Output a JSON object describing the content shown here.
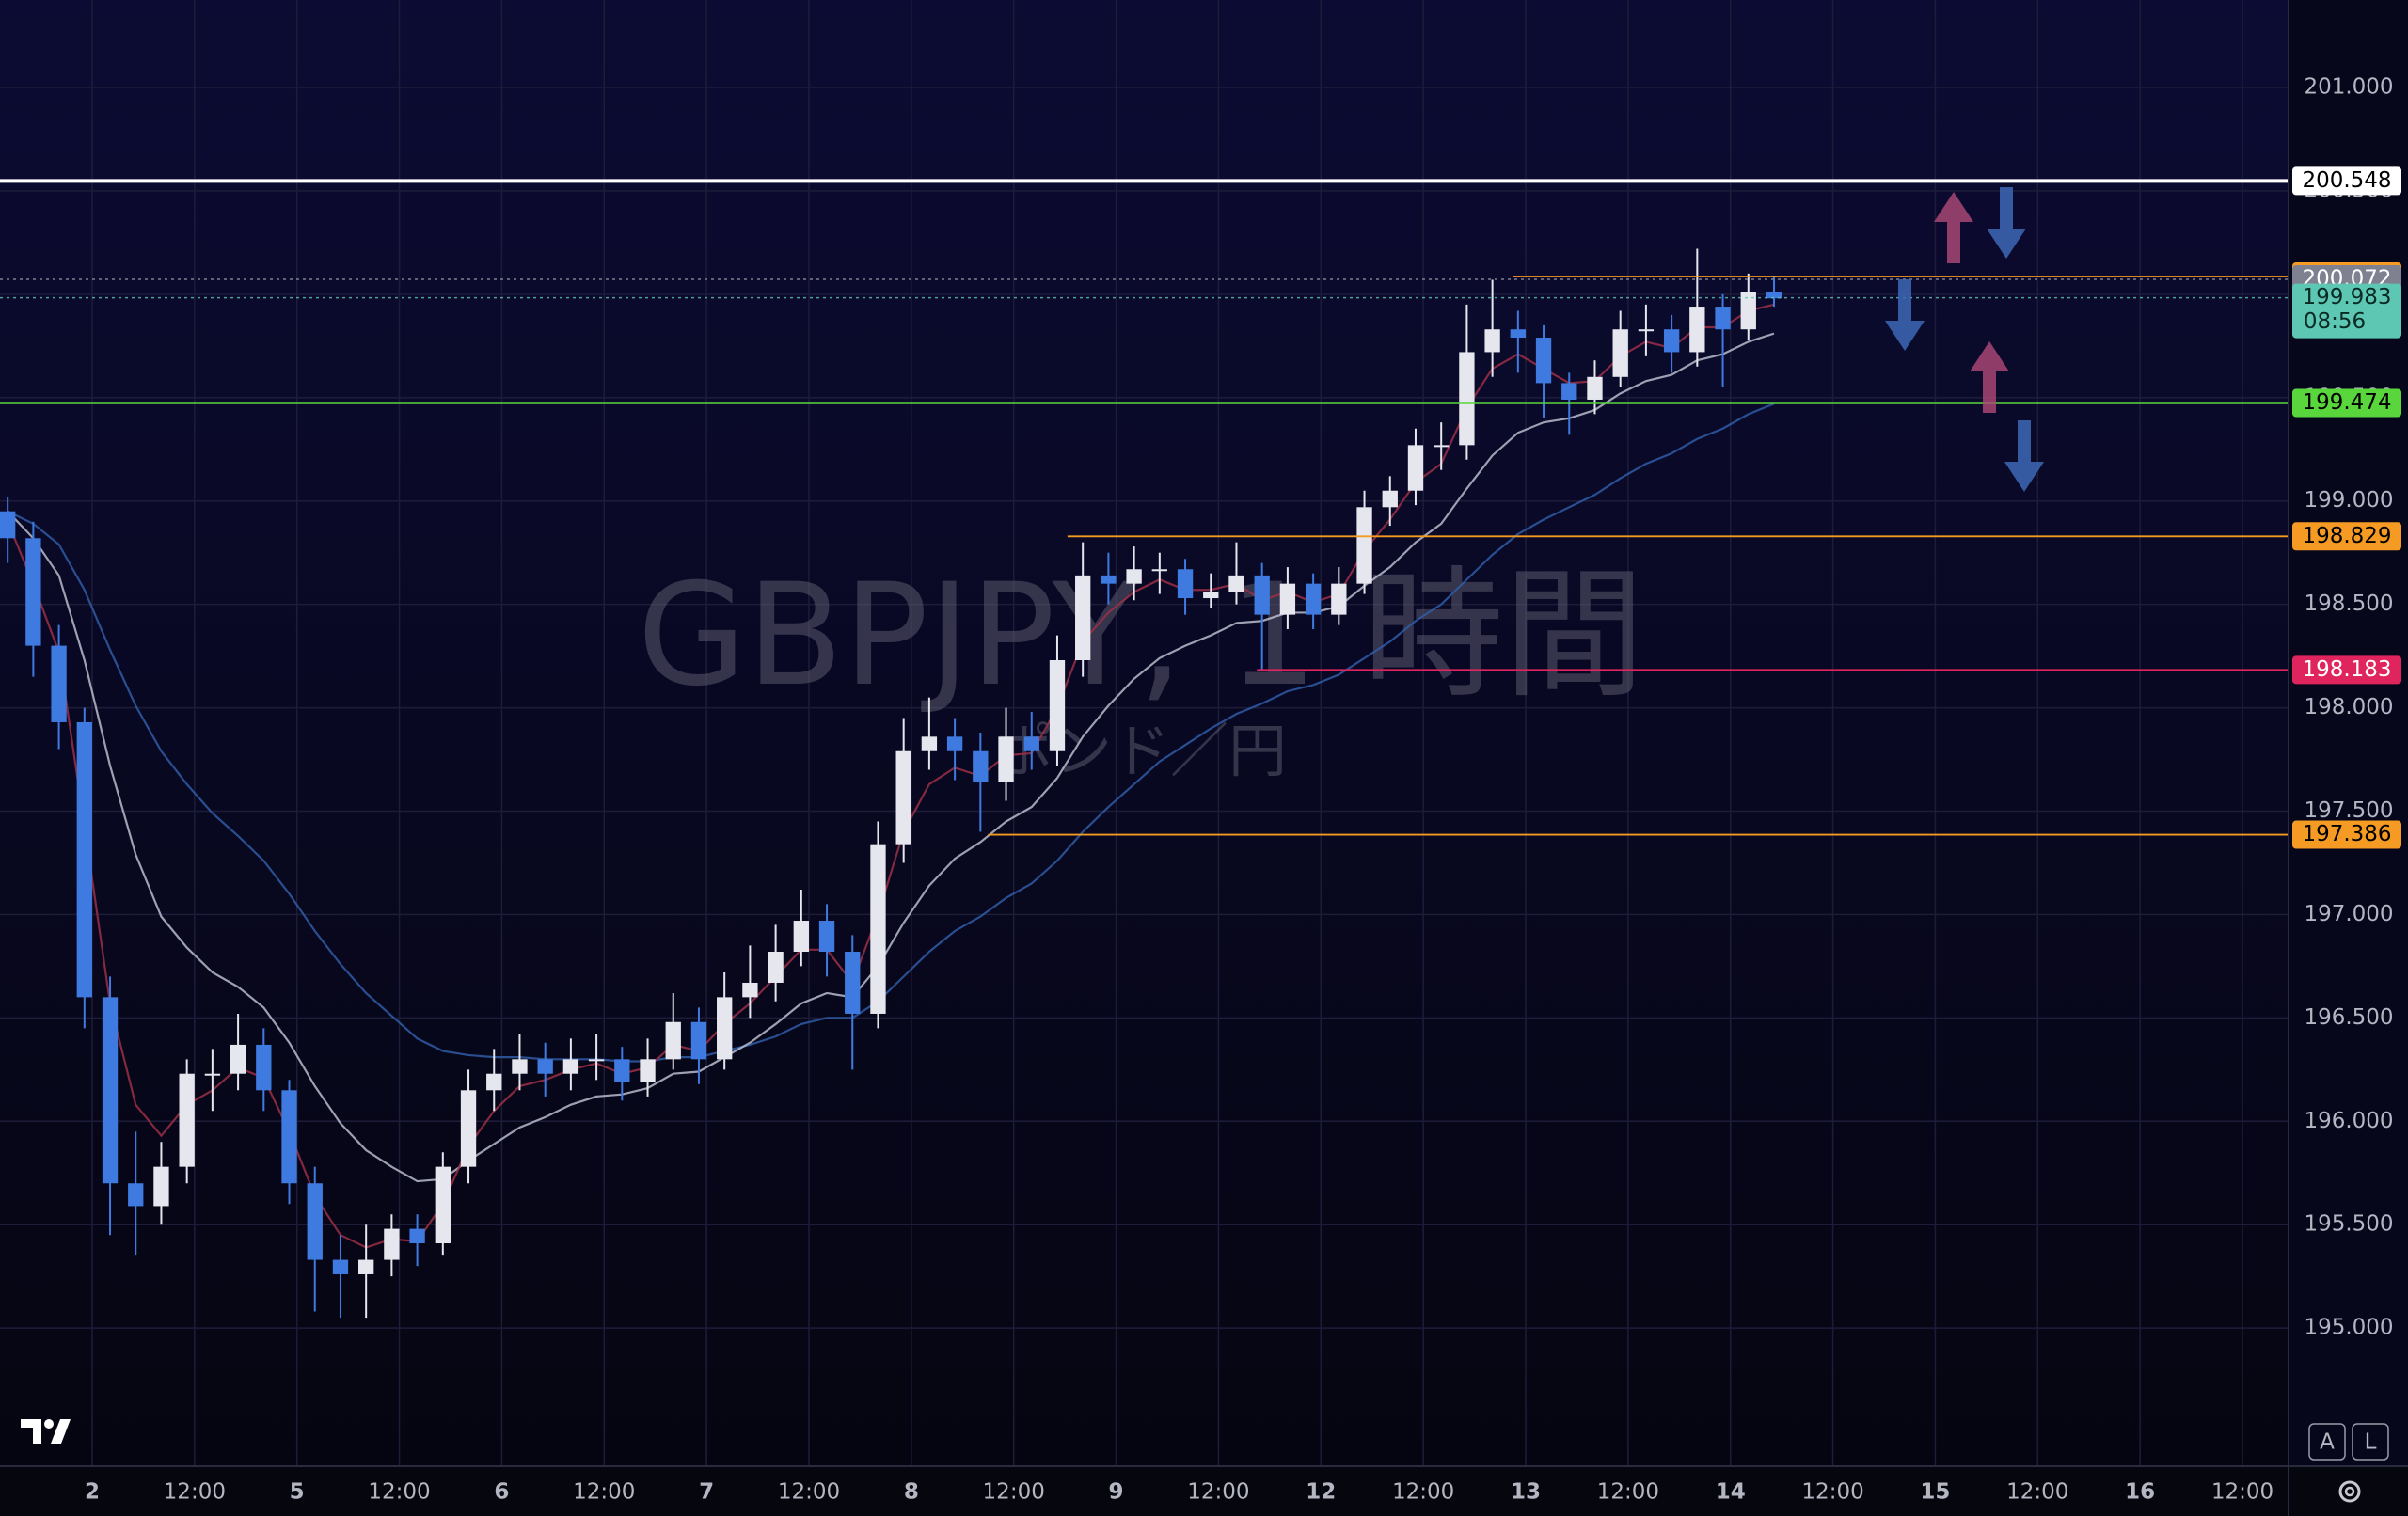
{
  "chart_data": {
    "type": "candlestick",
    "symbol_watermark": "GBPJPY, 1 時間",
    "subtitle_watermark": "ポンド／円",
    "grid": true,
    "xlim": [
      -0.3,
      89.1
    ],
    "xticks": [
      {
        "value": 3.3,
        "label": "2"
      },
      {
        "value": 7.3,
        "label": "12:00"
      },
      {
        "value": 11.3,
        "label": "5"
      },
      {
        "value": 15.3,
        "label": "12:00"
      },
      {
        "value": 19.3,
        "label": "6"
      },
      {
        "value": 23.3,
        "label": "12:00"
      },
      {
        "value": 27.3,
        "label": "7"
      },
      {
        "value": 31.3,
        "label": "12:00"
      },
      {
        "value": 35.3,
        "label": "8"
      },
      {
        "value": 39.3,
        "label": "12:00"
      },
      {
        "value": 43.3,
        "label": "9"
      },
      {
        "value": 47.3,
        "label": "12:00"
      },
      {
        "value": 51.3,
        "label": "12"
      },
      {
        "value": 55.3,
        "label": "12:00"
      },
      {
        "value": 59.3,
        "label": "13"
      },
      {
        "value": 63.3,
        "label": "12:00"
      },
      {
        "value": 67.3,
        "label": "14"
      },
      {
        "value": 71.3,
        "label": "12:00"
      },
      {
        "value": 75.3,
        "label": "15"
      },
      {
        "value": 79.3,
        "label": "12:00"
      },
      {
        "value": 83.3,
        "label": "16"
      },
      {
        "value": 87.3,
        "label": "12:00"
      }
    ],
    "ylim": [
      194.332,
      201.423
    ],
    "yticks": [
      {
        "value": 195,
        "label": "195.000"
      },
      {
        "value": 195.5,
        "label": "195.500"
      },
      {
        "value": 196,
        "label": "196.000"
      },
      {
        "value": 196.5,
        "label": "196.500"
      },
      {
        "value": 197,
        "label": "197.000"
      },
      {
        "value": 197.5,
        "label": "197.500"
      },
      {
        "value": 198,
        "label": "198.000"
      },
      {
        "value": 198.5,
        "label": "198.500"
      },
      {
        "value": 199,
        "label": "199.000"
      },
      {
        "value": 199.5,
        "label": "199.500"
      },
      {
        "value": 200,
        "label": "200.000"
      },
      {
        "value": 200.5,
        "label": "200.500"
      },
      {
        "value": 201,
        "label": "201.000"
      }
    ],
    "up_color": "#e6e6ee",
    "down_color": "#3f7ae0",
    "ohlc": {
      "open": [
        198.95,
        198.82,
        198.3,
        197.93,
        196.6,
        195.7,
        195.59,
        195.78,
        196.23,
        196.23,
        196.37,
        196.15,
        195.7,
        195.33,
        195.26,
        195.33,
        195.48,
        195.41,
        195.78,
        196.15,
        196.23,
        196.3,
        196.23,
        196.3,
        196.3,
        196.19,
        196.3,
        196.48,
        196.3,
        196.6,
        196.67,
        196.82,
        196.97,
        196.82,
        196.52,
        197.34,
        197.79,
        197.86,
        197.79,
        197.64,
        197.86,
        197.79,
        198.23,
        198.64,
        198.6,
        198.67,
        198.67,
        198.53,
        198.56,
        198.64,
        198.45,
        198.6,
        198.45,
        198.6,
        198.97,
        199.05,
        199.27,
        199.27,
        199.72,
        199.83,
        199.79,
        199.57,
        199.49,
        199.6,
        199.83,
        199.83,
        199.72,
        199.94,
        199.83,
        200.01
      ],
      "high": [
        199.02,
        198.9,
        198.4,
        198.0,
        196.7,
        195.95,
        195.9,
        196.3,
        196.35,
        196.52,
        196.45,
        196.2,
        195.78,
        195.45,
        195.5,
        195.55,
        195.55,
        195.85,
        196.25,
        196.35,
        196.42,
        196.38,
        196.4,
        196.42,
        196.36,
        196.4,
        196.62,
        196.55,
        196.72,
        196.85,
        196.95,
        197.12,
        197.05,
        196.9,
        197.45,
        197.95,
        198.05,
        197.95,
        197.88,
        198.0,
        197.98,
        198.35,
        198.8,
        198.75,
        198.78,
        198.75,
        198.72,
        198.65,
        198.8,
        198.7,
        198.68,
        198.65,
        198.68,
        199.05,
        199.12,
        199.35,
        199.38,
        199.95,
        200.07,
        199.92,
        199.85,
        199.62,
        199.68,
        199.92,
        199.95,
        199.9,
        200.22,
        200.0,
        200.1,
        200.09
      ],
      "low": [
        198.7,
        198.15,
        197.8,
        196.45,
        195.45,
        195.35,
        195.5,
        195.7,
        196.05,
        196.15,
        196.05,
        195.6,
        195.08,
        195.05,
        195.05,
        195.25,
        195.3,
        195.35,
        195.7,
        196.05,
        196.15,
        196.12,
        196.15,
        196.2,
        196.1,
        196.12,
        196.25,
        196.18,
        196.25,
        196.5,
        196.58,
        196.75,
        196.7,
        196.25,
        196.45,
        197.25,
        197.7,
        197.65,
        197.4,
        197.55,
        197.7,
        197.72,
        198.15,
        198.5,
        198.52,
        198.55,
        198.45,
        198.48,
        198.5,
        198.18,
        198.38,
        198.38,
        198.4,
        198.55,
        198.88,
        198.98,
        199.15,
        199.2,
        199.6,
        199.62,
        199.4,
        199.32,
        199.42,
        199.55,
        199.7,
        199.62,
        199.65,
        199.55,
        199.78,
        199.94
      ],
      "close": [
        198.82,
        198.3,
        197.93,
        196.6,
        195.7,
        195.59,
        195.78,
        196.23,
        196.23,
        196.37,
        196.15,
        195.7,
        195.33,
        195.26,
        195.33,
        195.48,
        195.41,
        195.78,
        196.15,
        196.23,
        196.3,
        196.23,
        196.3,
        196.3,
        196.19,
        196.3,
        196.48,
        196.3,
        196.6,
        196.67,
        196.82,
        196.97,
        196.82,
        196.52,
        197.34,
        197.79,
        197.86,
        197.79,
        197.64,
        197.86,
        197.79,
        198.23,
        198.64,
        198.6,
        198.67,
        198.67,
        198.53,
        198.56,
        198.64,
        198.45,
        198.6,
        198.45,
        198.6,
        198.97,
        199.05,
        199.27,
        199.27,
        199.72,
        199.83,
        199.79,
        199.57,
        199.49,
        199.6,
        199.83,
        199.83,
        199.72,
        199.94,
        199.83,
        200.01,
        199.98
      ]
    },
    "series": [
      {
        "color": "#2f5ca6",
        "values": [
          198.95,
          198.89,
          198.79,
          198.57,
          198.28,
          198.01,
          197.79,
          197.63,
          197.49,
          197.38,
          197.26,
          197.1,
          196.92,
          196.76,
          196.62,
          196.51,
          196.4,
          196.34,
          196.32,
          196.31,
          196.31,
          196.3,
          196.3,
          196.3,
          196.29,
          196.29,
          196.31,
          196.31,
          196.34,
          196.37,
          196.41,
          196.47,
          196.5,
          196.5,
          196.58,
          196.7,
          196.82,
          196.92,
          196.99,
          197.08,
          197.15,
          197.26,
          197.4,
          197.52,
          197.63,
          197.74,
          197.82,
          197.9,
          197.97,
          198.02,
          198.08,
          198.11,
          198.16,
          198.24,
          198.32,
          198.42,
          198.5,
          198.62,
          198.74,
          198.84,
          198.91,
          198.97,
          199.03,
          199.11,
          199.18,
          199.23,
          199.3,
          199.35,
          199.42,
          199.47
        ]
      },
      {
        "color": "#b9bccb",
        "values": [
          198.95,
          198.82,
          198.64,
          198.23,
          197.72,
          197.29,
          196.99,
          196.84,
          196.72,
          196.65,
          196.55,
          196.38,
          196.17,
          195.99,
          195.86,
          195.78,
          195.71,
          195.72,
          195.81,
          195.89,
          195.97,
          196.02,
          196.08,
          196.12,
          196.13,
          196.16,
          196.23,
          196.24,
          196.31,
          196.38,
          196.47,
          196.57,
          196.62,
          196.6,
          196.75,
          196.96,
          197.14,
          197.27,
          197.35,
          197.45,
          197.52,
          197.66,
          197.86,
          198.01,
          198.14,
          198.24,
          198.3,
          198.35,
          198.41,
          198.42,
          198.46,
          198.46,
          198.49,
          198.59,
          198.68,
          198.8,
          198.89,
          199.06,
          199.22,
          199.33,
          199.38,
          199.4,
          199.44,
          199.52,
          199.58,
          199.61,
          199.68,
          199.71,
          199.77,
          199.81
        ]
      },
      {
        "color": "#9a2f45",
        "values": [
          198.9,
          198.6,
          198.27,
          197.43,
          196.57,
          196.08,
          195.93,
          196.08,
          196.15,
          196.26,
          196.21,
          195.95,
          195.64,
          195.45,
          195.39,
          195.43,
          195.42,
          195.6,
          195.88,
          196.05,
          196.17,
          196.2,
          196.25,
          196.28,
          196.23,
          196.26,
          196.37,
          196.34,
          196.47,
          196.57,
          196.7,
          196.83,
          196.83,
          196.67,
          197.0,
          197.4,
          197.63,
          197.71,
          197.67,
          197.77,
          197.78,
          198.0,
          198.32,
          198.46,
          198.56,
          198.62,
          198.57,
          198.57,
          198.6,
          198.52,
          198.56,
          198.51,
          198.55,
          198.76,
          198.91,
          199.09,
          199.18,
          199.45,
          199.64,
          199.71,
          199.64,
          199.57,
          199.58,
          199.7,
          199.77,
          199.74,
          199.84,
          199.84,
          199.92,
          199.95
        ]
      }
    ],
    "levels": [
      {
        "value": 200.548,
        "color": "#ffffff",
        "text_color": "#000000",
        "style": "thick"
      },
      {
        "value": 200.086,
        "color": "#f59a23",
        "text_color": "#000000",
        "style": "thin",
        "from": 58.8
      },
      {
        "value": 200.072,
        "color": "#7f8090",
        "text_color": "#ffffff",
        "style": "dotted"
      },
      {
        "value": 199.474,
        "color": "#59d63c",
        "text_color": "#000000",
        "style": "medium"
      },
      {
        "value": 198.829,
        "color": "#f59a23",
        "text_color": "#000000",
        "style": "thin",
        "from": 41.4
      },
      {
        "value": 198.183,
        "color": "#e0245e",
        "text_color": "#ffffff",
        "style": "thin",
        "from": 48.8
      },
      {
        "value": 197.386,
        "color": "#f59a23",
        "text_color": "#000000",
        "style": "thin",
        "from": 38.3
      }
    ],
    "last_price": {
      "value": 199.983,
      "countdown": "08:56",
      "color": "#5ec7b3",
      "text_color": "#0a2a24"
    },
    "buttons": [
      "A",
      "L"
    ]
  }
}
